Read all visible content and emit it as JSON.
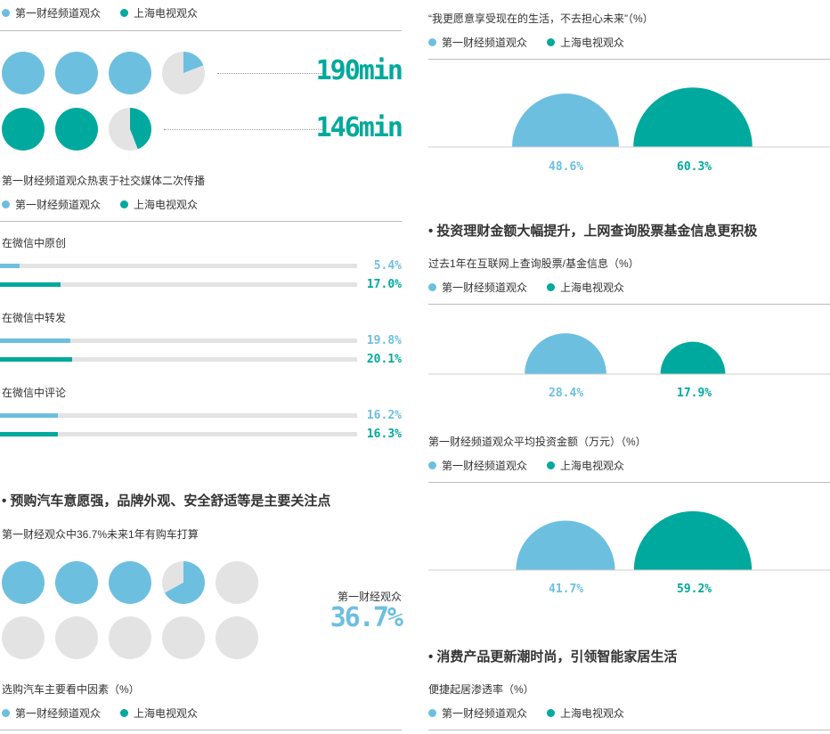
{
  "colors": {
    "blue": "#6dbfe0",
    "teal": "#00a99d",
    "grey": "#e3e3e3"
  },
  "legend": {
    "a": "第一财经频道观众",
    "b": "上海电视观众"
  },
  "viewing": {
    "a_value": "190min",
    "b_value": "146min",
    "a_fraction": 3.19,
    "b_fraction": 2.44
  },
  "social": {
    "title": "第一财经频道观众热衷于社交媒体二次传播",
    "bars": [
      {
        "label": "在微信中原创",
        "a": 5.4,
        "b": 17.0,
        "a_text": "5.4%",
        "b_text": "17.0%"
      },
      {
        "label": "在微信中转发",
        "a": 19.8,
        "b": 20.1,
        "a_text": "19.8%",
        "b_text": "20.1%"
      },
      {
        "label": "在微信中评论",
        "a": 16.2,
        "b": 16.3,
        "a_text": "16.2%",
        "b_text": "16.3%"
      }
    ]
  },
  "car": {
    "heading": "• 预购汽车意愿强，品牌外观、安全舒适等是主要关注点",
    "subtitle": "第一财经观众中36.7%未来1年有购车打算",
    "stat_label": "第一财经观众",
    "stat_value": "36.7%",
    "fraction": 3.67,
    "total": 10,
    "factor_title": "选购汽车主要看中因素（%）"
  },
  "right": {
    "enjoy_title": "“我更愿意享受现在的生活，不去担心未来”（%）",
    "invest_heading": "• 投资理财金额大幅提升，上网查询股票基金信息更积极",
    "query_title": "过去1年在互联网上查询股票/基金信息（%）",
    "amount_title": "第一财经频道观众平均投资金额（万元）（%）",
    "consumer_heading": "• 消费产品更新潮时尚，引领智能家居生活",
    "home_title": "便捷起居渗透率（%）"
  },
  "chart_data": [
    {
      "type": "bar",
      "title": "在微信中原创 / 在微信中转发 / 在微信中评论",
      "categories": [
        "在微信中原创",
        "在微信中转发",
        "在微信中评论"
      ],
      "series": [
        {
          "name": "第一财经频道观众",
          "values": [
            5.4,
            19.8,
            16.2
          ]
        },
        {
          "name": "上海电视观众",
          "values": [
            17.0,
            20.1,
            16.3
          ]
        }
      ]
    },
    {
      "type": "bar",
      "title": "“我更愿意享受现在的生活，不去担心未来”（%）",
      "series": [
        {
          "name": "第一财经频道观众",
          "values": [
            48.6
          ],
          "label": "48.6%"
        },
        {
          "name": "上海电视观众",
          "values": [
            60.3
          ],
          "label": "60.3%"
        }
      ]
    },
    {
      "type": "bar",
      "title": "过去1年在互联网上查询股票/基金信息（%）",
      "series": [
        {
          "name": "第一财经频道观众",
          "values": [
            28.4
          ],
          "label": "28.4%"
        },
        {
          "name": "上海电视观众",
          "values": [
            17.9
          ],
          "label": "17.9%"
        }
      ]
    },
    {
      "type": "bar",
      "title": "第一财经频道观众平均投资金额（万元）（%）",
      "series": [
        {
          "name": "第一财经频道观众",
          "values": [
            41.7
          ],
          "label": "41.7%"
        },
        {
          "name": "上海电视观众",
          "values": [
            59.2
          ],
          "label": "59.2%"
        }
      ]
    }
  ]
}
